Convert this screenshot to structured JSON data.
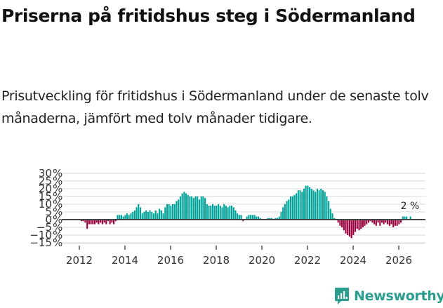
{
  "header": {
    "title": "Priserna på fritidshus steg i Södermanland",
    "subtitle": "Prisutveckling för fritidshus i Södermanland under de senaste tolv månaderna, jämfört med tolv månader tidigare."
  },
  "branding": {
    "logo_text": "Newsworthy",
    "logo_color": "#2a9d8f"
  },
  "colors": {
    "positive": "#00a39a",
    "negative": "#9b003f",
    "grid": "#e0e0e0",
    "zero_line": "#444444",
    "axis_text": "#333333"
  },
  "chart_data": {
    "type": "bar",
    "title": "Priserna på fritidshus steg i Södermanland",
    "subtitle": "Prisutveckling för fritidshus i Södermanland under de senaste tolv månaderna, jämfört med tolv månader tidigare.",
    "xlabel": "",
    "ylabel": "",
    "ylim": [
      -15,
      30
    ],
    "yticks": [
      30,
      25,
      20,
      15,
      10,
      5,
      0,
      -5,
      -10,
      -15
    ],
    "ytick_labels": [
      "30 %",
      "25 %",
      "20 %",
      "15 %",
      "10 %",
      "5 %",
      "0 %",
      "−5 %",
      "−10 %",
      "−15 %"
    ],
    "xticks": [
      2012,
      2014,
      2016,
      2018,
      2020,
      2022,
      2024,
      2026
    ],
    "grid": true,
    "legend": null,
    "annotation": {
      "text": "2 %",
      "target": "last value"
    },
    "start": "2012-01",
    "frequency": "monthly",
    "values": [
      -1,
      -1,
      -2,
      -6,
      -3,
      -3,
      -3,
      -3,
      -2,
      -3,
      -2,
      -3,
      -2,
      -3,
      -1,
      -3,
      -2,
      -3,
      -1,
      3,
      3,
      3,
      2,
      3,
      4,
      3,
      4,
      5,
      6,
      8,
      10,
      8,
      4,
      5,
      6,
      5,
      6,
      5,
      4,
      6,
      4,
      7,
      6,
      4,
      8,
      10,
      10,
      9,
      10,
      10,
      12,
      13,
      15,
      17,
      18,
      17,
      16,
      15,
      15,
      14,
      15,
      15,
      13,
      15,
      15,
      14,
      10,
      9,
      9,
      10,
      9,
      9,
      10,
      9,
      8,
      10,
      9,
      8,
      9,
      9,
      8,
      6,
      4,
      3,
      3,
      -1,
      0,
      2,
      3,
      3,
      3,
      3,
      2,
      2,
      1,
      0,
      0,
      0,
      1,
      1,
      1,
      0,
      1,
      1,
      2,
      5,
      8,
      10,
      12,
      13,
      15,
      15,
      16,
      17,
      19,
      19,
      18,
      20,
      22,
      22,
      21,
      20,
      19,
      18,
      20,
      19,
      20,
      19,
      18,
      15,
      12,
      7,
      4,
      1,
      0,
      -2,
      -4,
      -5,
      -7,
      -9,
      -10,
      -11,
      -12,
      -10,
      -8,
      -6,
      -7,
      -6,
      -5,
      -4,
      -3,
      -2,
      -1,
      -2,
      -3,
      -4,
      -2,
      -4,
      -2,
      -3,
      -2,
      -3,
      -4,
      -3,
      -5,
      -4,
      -4,
      -3,
      -2,
      2,
      2,
      2,
      0,
      2
    ]
  }
}
